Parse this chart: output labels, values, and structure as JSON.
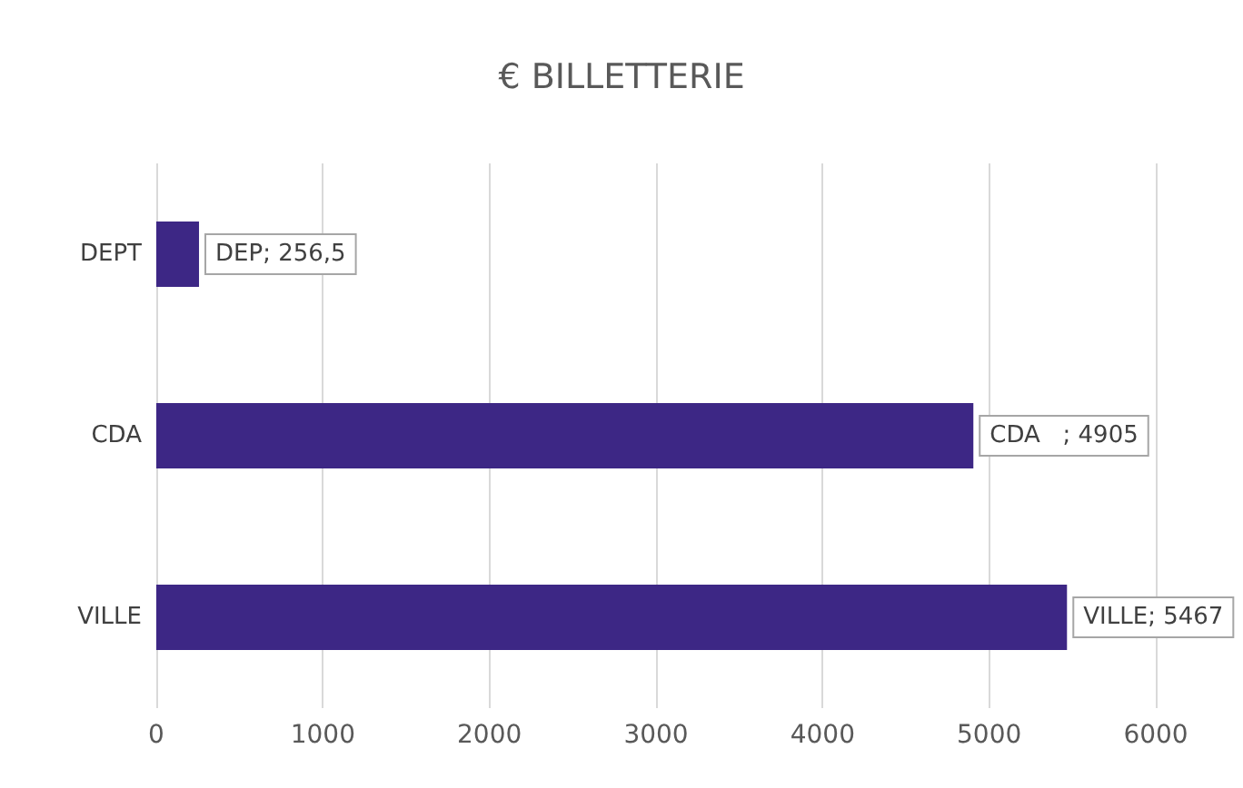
{
  "chart_data": {
    "type": "bar",
    "orientation": "horizontal",
    "title": "€ BILLETTERIE",
    "categories": [
      "DEPT",
      "CDA",
      "VILLE"
    ],
    "values": [
      256.5,
      4905,
      5467
    ],
    "value_labels": [
      "DEP; 256,5",
      "CDA   ; 4905",
      "VILLE; 5467"
    ],
    "color": "#3d2785",
    "xlim": [
      0,
      6000
    ],
    "xticks": [
      0,
      1000,
      2000,
      3000,
      4000,
      5000,
      6000
    ],
    "grid": "x"
  }
}
